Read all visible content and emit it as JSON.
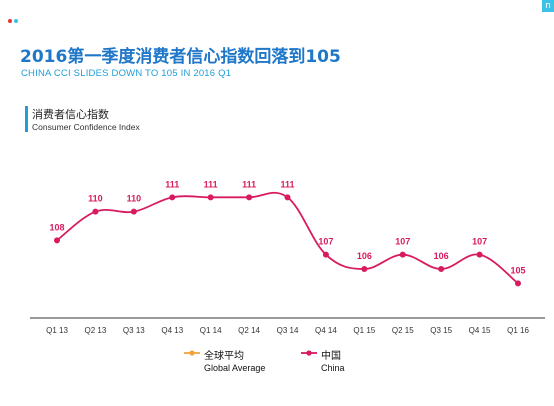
{
  "header": {
    "title": "2016第一季度消费者信心指数回落到105",
    "subtitle": "CHINA CCI SLIDES DOWN TO 105 IN 2016 Q1"
  },
  "index_label": {
    "cn": "消费者信心指数",
    "en": "Consumer Confidence Index"
  },
  "legend": [
    {
      "cn": "全球平均",
      "en": "Global Average",
      "color": "#f5a23c"
    },
    {
      "cn": "中国",
      "en": "China",
      "color": "#d81b60"
    }
  ],
  "colors": {
    "title": "#1f77c9",
    "accent": "#1f9ed8",
    "china_line": "#d81b60",
    "global_line": "#f5a23c"
  },
  "chart_data": {
    "type": "line",
    "categories": [
      "Q1 13",
      "Q2 13",
      "Q3 13",
      "Q4 13",
      "Q1 14",
      "Q2 14",
      "Q3 14",
      "Q4 14",
      "Q1 15",
      "Q2 15",
      "Q3 15",
      "Q4 15",
      "Q1 16"
    ],
    "series": [
      {
        "name": "China",
        "values": [
          108,
          110,
          110,
          111,
          111,
          111,
          111,
          107,
          106,
          107,
          106,
          107,
          105
        ]
      }
    ],
    "ylim": [
      103,
      115
    ],
    "grid": false,
    "legend_position": "bottom-center"
  }
}
